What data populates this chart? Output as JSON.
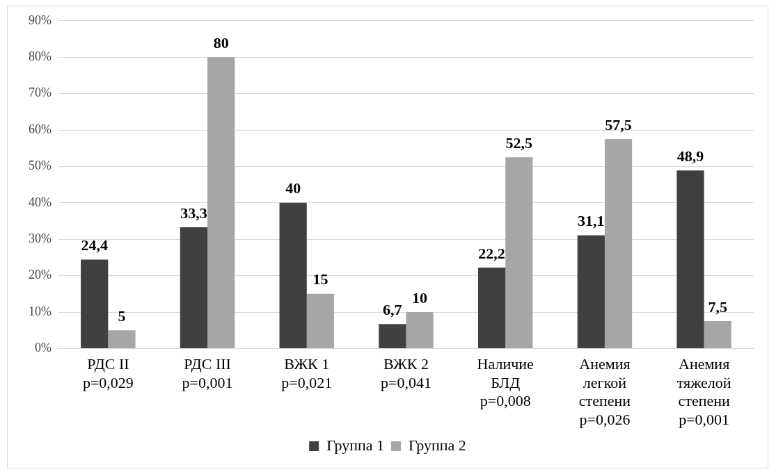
{
  "chart_data": {
    "type": "bar",
    "categories": [
      "РДС II\np=0,029",
      "РДС III\np=0,001",
      "ВЖК 1\np=0,021",
      "ВЖК 2\np=0,041",
      "Наличие\nБЛД\np=0,008",
      "Анемия\nлегкой\nстепени\np=0,026",
      "Анемия\nтяжелой\nстепени\np=0,001"
    ],
    "series": [
      {
        "name": "Группа 1",
        "color": "#404040",
        "values": [
          24.4,
          33.3,
          40,
          6.7,
          22.2,
          31.1,
          48.9
        ],
        "value_labels": [
          "24,4",
          "33,3",
          "40",
          "6,7",
          "22,2",
          "31,1",
          "48,9"
        ]
      },
      {
        "name": "Группа 2",
        "color": "#a6a6a6",
        "values": [
          5,
          80,
          15,
          10,
          52.5,
          57.5,
          7.5
        ],
        "value_labels": [
          "5",
          "80",
          "15",
          "10",
          "52,5",
          "57,5",
          "7,5"
        ]
      }
    ],
    "ylim": [
      0,
      90
    ],
    "yticks": [
      {
        "value": 0,
        "label": "0%"
      },
      {
        "value": 10,
        "label": "10%"
      },
      {
        "value": 20,
        "label": "20%"
      },
      {
        "value": 30,
        "label": "30%"
      },
      {
        "value": 40,
        "label": "40%"
      },
      {
        "value": 50,
        "label": "50%"
      },
      {
        "value": 60,
        "label": "60%"
      },
      {
        "value": 70,
        "label": "70%"
      },
      {
        "value": 80,
        "label": "80%"
      },
      {
        "value": 90,
        "label": "90%"
      }
    ],
    "grid": "y",
    "legend": "bottom"
  }
}
